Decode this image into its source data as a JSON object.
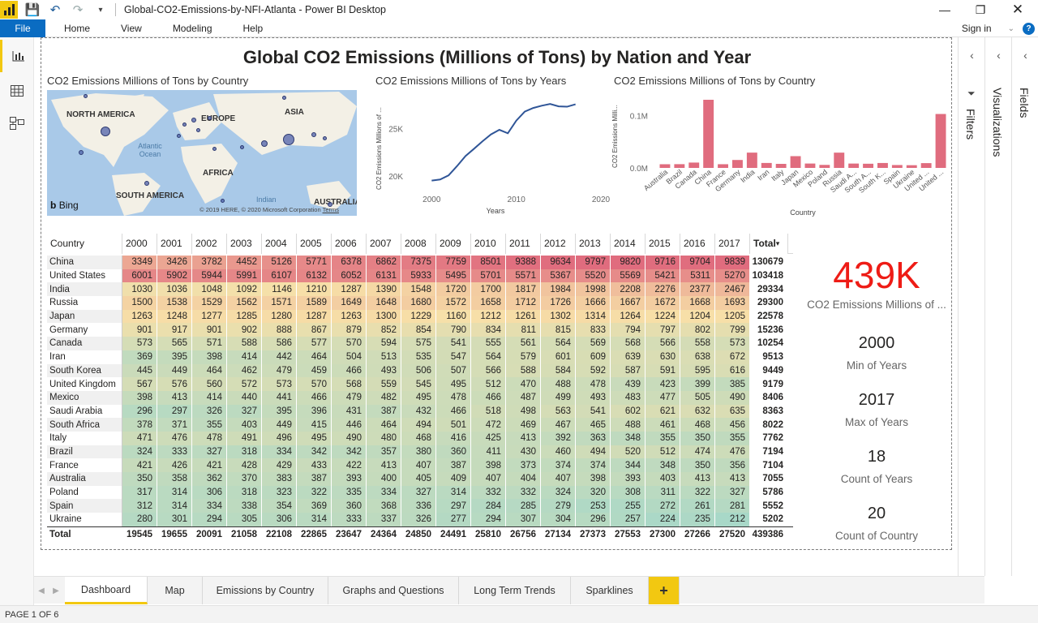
{
  "app": {
    "window_title": "Global-CO2-Emissions-by-NFI-Atlanta - Power BI Desktop",
    "menu": [
      "Home",
      "View",
      "Modeling",
      "Help"
    ],
    "file_label": "File",
    "sign_in": "Sign in",
    "help_glyph": "?"
  },
  "report": {
    "title": "Global CO2 Emissions (Millions of Tons) by Nation and Year",
    "map_title": "CO2 Emissions Millions of Tons by Country",
    "line_title": "CO2 Emissions Millions of Tons by Years",
    "bar_title": "CO2 Emissions Millions of Tons by Country"
  },
  "map": {
    "labels": {
      "north_america": "NORTH AMERICA",
      "europe": "EUROPE",
      "asia": "ASIA",
      "africa": "AFRICA",
      "south_america": "SOUTH AMERICA",
      "australia": "AUSTRALIA",
      "atlantic": "Atlantic Ocean",
      "indian": "Indian"
    },
    "bing": "Bing",
    "copyright": "© 2019 HERE, © 2020 Microsoft Corporation",
    "terms": "Terms"
  },
  "chart_data": [
    {
      "type": "line",
      "title": "CO2 Emissions Millions of Tons by Years",
      "xlabel": "Years",
      "ylabel": "CO2 Emissions Millions of ...",
      "x": [
        2000,
        2001,
        2002,
        2003,
        2004,
        2005,
        2006,
        2007,
        2008,
        2009,
        2010,
        2011,
        2012,
        2013,
        2014,
        2015,
        2016,
        2017
      ],
      "values": [
        19545,
        19655,
        20091,
        21058,
        22108,
        22865,
        23647,
        24364,
        24850,
        24491,
        25810,
        26756,
        27134,
        27373,
        27553,
        27300,
        27266,
        27520
      ],
      "xticks": [
        "2000",
        "2010",
        "2020"
      ],
      "yticks": [
        "20K",
        "25K"
      ],
      "xlim": [
        1997,
        2020
      ],
      "ylim": [
        19000,
        28500
      ],
      "color": "#2f5597"
    },
    {
      "type": "bar",
      "title": "CO2 Emissions Millions of Tons by Country",
      "xlabel": "Country",
      "ylabel": "CO2 Emissions Milli...",
      "categories": [
        "Australia",
        "Brazil",
        "Canada",
        "China",
        "France",
        "Germany",
        "India",
        "Iran",
        "Italy",
        "Japan",
        "Mexico",
        "Poland",
        "Russia",
        "Saudi A...",
        "South A...",
        "South K...",
        "Spain",
        "Ukraine",
        "United ...",
        "United ..."
      ],
      "values": [
        7055,
        7194,
        10254,
        130679,
        7104,
        15236,
        29334,
        9513,
        7762,
        22578,
        8406,
        5786,
        29300,
        8363,
        8022,
        9449,
        5552,
        5202,
        9179,
        103418
      ],
      "yticks": [
        "0.0M",
        "0.1M"
      ],
      "ylim": [
        0,
        140000
      ],
      "color": "#e06c7e"
    },
    {
      "type": "table",
      "columns": [
        "Country",
        "2000",
        "2001",
        "2002",
        "2003",
        "2004",
        "2005",
        "2006",
        "2007",
        "2008",
        "2009",
        "2010",
        "2011",
        "2012",
        "2013",
        "2014",
        "2015",
        "2016",
        "2017",
        "Total"
      ],
      "rows": [
        {
          "country": "China",
          "values": [
            3349,
            3426,
            3782,
            4452,
            5126,
            5771,
            6378,
            6862,
            7375,
            7759,
            8501,
            9388,
            9634,
            9797,
            9820,
            9716,
            9704,
            9839
          ],
          "total": 130679
        },
        {
          "country": "United States",
          "values": [
            6001,
            5902,
            5944,
            5991,
            6107,
            6132,
            6052,
            6131,
            5933,
            5495,
            5701,
            5571,
            5367,
            5520,
            5569,
            5421,
            5311,
            5270
          ],
          "total": 103418
        },
        {
          "country": "India",
          "values": [
            1030,
            1036,
            1048,
            1092,
            1146,
            1210,
            1287,
            1390,
            1548,
            1720,
            1700,
            1817,
            1984,
            1998,
            2208,
            2276,
            2377,
            2467
          ],
          "total": 29334
        },
        {
          "country": "Russia",
          "values": [
            1500,
            1538,
            1529,
            1562,
            1571,
            1589,
            1649,
            1648,
            1680,
            1572,
            1658,
            1712,
            1726,
            1666,
            1667,
            1672,
            1668,
            1693
          ],
          "total": 29300
        },
        {
          "country": "Japan",
          "values": [
            1263,
            1248,
            1277,
            1285,
            1280,
            1287,
            1263,
            1300,
            1229,
            1160,
            1212,
            1261,
            1302,
            1314,
            1264,
            1224,
            1204,
            1205
          ],
          "total": 22578
        },
        {
          "country": "Germany",
          "values": [
            901,
            917,
            901,
            902,
            888,
            867,
            879,
            852,
            854,
            790,
            834,
            811,
            815,
            833,
            794,
            797,
            802,
            799
          ],
          "total": 15236
        },
        {
          "country": "Canada",
          "values": [
            573,
            565,
            571,
            588,
            586,
            577,
            570,
            594,
            575,
            541,
            555,
            561,
            564,
            569,
            568,
            566,
            558,
            573
          ],
          "total": 10254
        },
        {
          "country": "Iran",
          "values": [
            369,
            395,
            398,
            414,
            442,
            464,
            504,
            513,
            535,
            547,
            564,
            579,
            601,
            609,
            639,
            630,
            638,
            672
          ],
          "total": 9513
        },
        {
          "country": "South Korea",
          "values": [
            445,
            449,
            464,
            462,
            479,
            459,
            466,
            493,
            506,
            507,
            566,
            588,
            584,
            592,
            587,
            591,
            595,
            616
          ],
          "total": 9449
        },
        {
          "country": "United Kingdom",
          "values": [
            567,
            576,
            560,
            572,
            573,
            570,
            568,
            559,
            545,
            495,
            512,
            470,
            488,
            478,
            439,
            423,
            399,
            385
          ],
          "total": 9179
        },
        {
          "country": "Mexico",
          "values": [
            398,
            413,
            414,
            440,
            441,
            466,
            479,
            482,
            495,
            478,
            466,
            487,
            499,
            493,
            483,
            477,
            505,
            490
          ],
          "total": 8406
        },
        {
          "country": "Saudi Arabia",
          "values": [
            296,
            297,
            326,
            327,
            395,
            396,
            431,
            387,
            432,
            466,
            518,
            498,
            563,
            541,
            602,
            621,
            632,
            635
          ],
          "total": 8363
        },
        {
          "country": "South Africa",
          "values": [
            378,
            371,
            355,
            403,
            449,
            415,
            446,
            464,
            494,
            501,
            472,
            469,
            467,
            465,
            488,
            461,
            468,
            456
          ],
          "total": 8022
        },
        {
          "country": "Italy",
          "values": [
            471,
            476,
            478,
            491,
            496,
            495,
            490,
            480,
            468,
            416,
            425,
            413,
            392,
            363,
            348,
            355,
            350,
            355
          ],
          "total": 7762
        },
        {
          "country": "Brazil",
          "values": [
            324,
            333,
            327,
            318,
            334,
            342,
            342,
            357,
            380,
            360,
            411,
            430,
            460,
            494,
            520,
            512,
            474,
            476
          ],
          "total": 7194
        },
        {
          "country": "France",
          "values": [
            421,
            426,
            421,
            428,
            429,
            433,
            422,
            413,
            407,
            387,
            398,
            373,
            374,
            374,
            344,
            348,
            350,
            356
          ],
          "total": 7104
        },
        {
          "country": "Australia",
          "values": [
            350,
            358,
            362,
            370,
            383,
            387,
            393,
            400,
            405,
            409,
            407,
            404,
            407,
            398,
            393,
            403,
            413,
            413
          ],
          "total": 7055
        },
        {
          "country": "Poland",
          "values": [
            317,
            314,
            306,
            318,
            323,
            322,
            335,
            334,
            327,
            314,
            332,
            332,
            324,
            320,
            308,
            311,
            322,
            327
          ],
          "total": 5786
        },
        {
          "country": "Spain",
          "values": [
            312,
            314,
            334,
            338,
            354,
            369,
            360,
            368,
            336,
            297,
            284,
            285,
            279,
            253,
            255,
            272,
            261,
            281
          ],
          "total": 5552
        },
        {
          "country": "Ukraine",
          "values": [
            280,
            301,
            294,
            305,
            306,
            314,
            333,
            337,
            326,
            277,
            294,
            307,
            304,
            296,
            257,
            224,
            235,
            212
          ],
          "total": 5202
        }
      ],
      "totals_label": "Total",
      "totals": [
        19545,
        19655,
        20091,
        21058,
        22108,
        22865,
        23647,
        24364,
        24850,
        24491,
        25810,
        26756,
        27134,
        27373,
        27553,
        27300,
        27266,
        27520
      ],
      "grand_total": 439386
    }
  ],
  "cards": {
    "big_value": "439K",
    "big_label": "CO2 Emissions Millions of ...",
    "min_years_value": "2000",
    "min_years_label": "Min of Years",
    "max_years_value": "2017",
    "max_years_label": "Max of Years",
    "count_years_value": "18",
    "count_years_label": "Count of Years",
    "count_country_value": "20",
    "count_country_label": "Count of Country"
  },
  "panes": {
    "filters": "Filters",
    "visualizations": "Visualizations",
    "fields": "Fields"
  },
  "tabs": [
    "Dashboard",
    "Map",
    "Emissions by Country",
    "Graphs and Questions",
    "Long Term Trends",
    "Sparklines"
  ],
  "tab_add": "+",
  "status": "PAGE 1 OF 6",
  "colors": {
    "accent": "#f2c811",
    "file_blue": "#0a6cc2",
    "card_red": "#ee1c16",
    "heat_low": "#a8d8c8",
    "heat_mid": "#f7e0a8",
    "heat_high": "#e06c7e"
  }
}
